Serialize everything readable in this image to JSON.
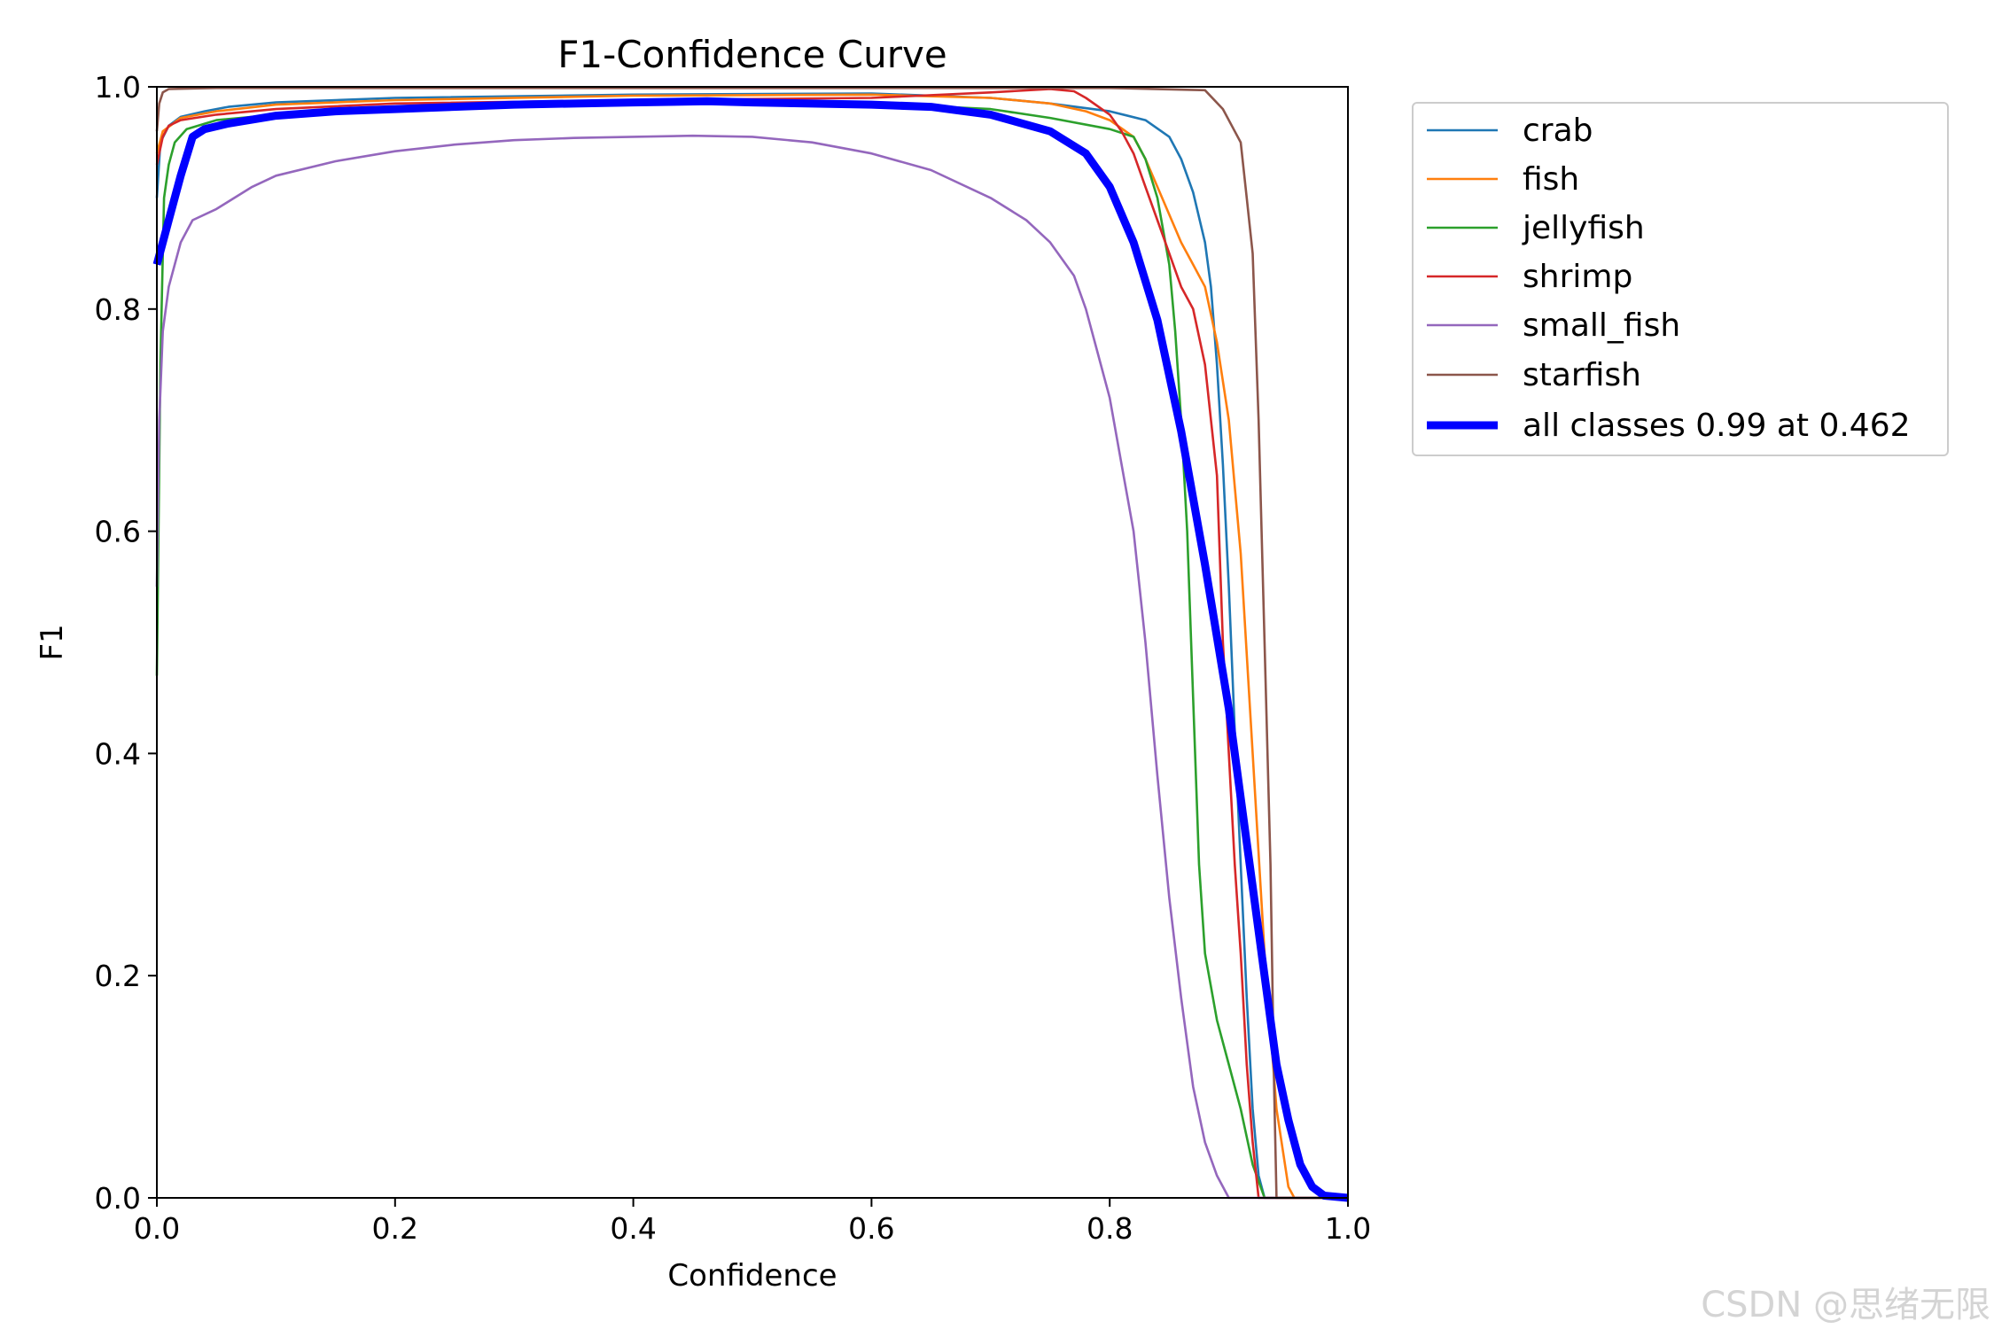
{
  "chart_data": {
    "type": "line",
    "title": "F1-Confidence Curve",
    "xlabel": "Confidence",
    "ylabel": "F1",
    "xlim": [
      0,
      1
    ],
    "ylim": [
      0,
      1
    ],
    "xticks": [
      "0.0",
      "0.2",
      "0.4",
      "0.6",
      "0.8",
      "1.0"
    ],
    "yticks": [
      "0.0",
      "0.2",
      "0.4",
      "0.6",
      "0.8",
      "1.0"
    ],
    "legend": "outside-right",
    "series": [
      {
        "name": "crab",
        "color": "#1f77b4",
        "points": [
          [
            0.0,
            0.9
          ],
          [
            0.003,
            0.95
          ],
          [
            0.01,
            0.965
          ],
          [
            0.02,
            0.973
          ],
          [
            0.04,
            0.978
          ],
          [
            0.06,
            0.982
          ],
          [
            0.1,
            0.986
          ],
          [
            0.2,
            0.99
          ],
          [
            0.4,
            0.993
          ],
          [
            0.6,
            0.994
          ],
          [
            0.7,
            0.99
          ],
          [
            0.75,
            0.985
          ],
          [
            0.8,
            0.978
          ],
          [
            0.83,
            0.97
          ],
          [
            0.85,
            0.955
          ],
          [
            0.86,
            0.935
          ],
          [
            0.87,
            0.905
          ],
          [
            0.88,
            0.86
          ],
          [
            0.885,
            0.82
          ],
          [
            0.89,
            0.75
          ],
          [
            0.895,
            0.66
          ],
          [
            0.9,
            0.55
          ],
          [
            0.905,
            0.42
          ],
          [
            0.91,
            0.3
          ],
          [
            0.915,
            0.18
          ],
          [
            0.92,
            0.08
          ],
          [
            0.925,
            0.02
          ],
          [
            0.93,
            0.0
          ],
          [
            1.0,
            0.0
          ]
        ]
      },
      {
        "name": "fish",
        "color": "#ff7f0e",
        "points": [
          [
            0.0,
            0.94
          ],
          [
            0.005,
            0.96
          ],
          [
            0.02,
            0.972
          ],
          [
            0.05,
            0.978
          ],
          [
            0.1,
            0.984
          ],
          [
            0.2,
            0.988
          ],
          [
            0.4,
            0.992
          ],
          [
            0.6,
            0.993
          ],
          [
            0.7,
            0.99
          ],
          [
            0.75,
            0.985
          ],
          [
            0.78,
            0.978
          ],
          [
            0.8,
            0.97
          ],
          [
            0.82,
            0.955
          ],
          [
            0.83,
            0.935
          ],
          [
            0.84,
            0.91
          ],
          [
            0.85,
            0.885
          ],
          [
            0.86,
            0.86
          ],
          [
            0.87,
            0.84
          ],
          [
            0.88,
            0.82
          ],
          [
            0.89,
            0.77
          ],
          [
            0.9,
            0.7
          ],
          [
            0.91,
            0.58
          ],
          [
            0.92,
            0.4
          ],
          [
            0.93,
            0.22
          ],
          [
            0.94,
            0.08
          ],
          [
            0.95,
            0.01
          ],
          [
            0.955,
            0.0
          ],
          [
            1.0,
            0.0
          ]
        ]
      },
      {
        "name": "jellyfish",
        "color": "#2ca02c",
        "points": [
          [
            0.0,
            0.47
          ],
          [
            0.003,
            0.75
          ],
          [
            0.006,
            0.9
          ],
          [
            0.01,
            0.93
          ],
          [
            0.015,
            0.95
          ],
          [
            0.025,
            0.962
          ],
          [
            0.05,
            0.97
          ],
          [
            0.1,
            0.975
          ],
          [
            0.2,
            0.98
          ],
          [
            0.4,
            0.985
          ],
          [
            0.6,
            0.985
          ],
          [
            0.7,
            0.98
          ],
          [
            0.75,
            0.972
          ],
          [
            0.8,
            0.962
          ],
          [
            0.82,
            0.955
          ],
          [
            0.83,
            0.935
          ],
          [
            0.84,
            0.9
          ],
          [
            0.85,
            0.84
          ],
          [
            0.855,
            0.78
          ],
          [
            0.86,
            0.7
          ],
          [
            0.865,
            0.6
          ],
          [
            0.87,
            0.45
          ],
          [
            0.875,
            0.3
          ],
          [
            0.88,
            0.22
          ],
          [
            0.89,
            0.16
          ],
          [
            0.9,
            0.12
          ],
          [
            0.91,
            0.08
          ],
          [
            0.92,
            0.03
          ],
          [
            0.93,
            0.0
          ],
          [
            1.0,
            0.0
          ]
        ]
      },
      {
        "name": "shrimp",
        "color": "#d62728",
        "points": [
          [
            0.0,
            0.93
          ],
          [
            0.005,
            0.955
          ],
          [
            0.01,
            0.965
          ],
          [
            0.02,
            0.97
          ],
          [
            0.05,
            0.975
          ],
          [
            0.1,
            0.98
          ],
          [
            0.2,
            0.985
          ],
          [
            0.4,
            0.988
          ],
          [
            0.6,
            0.99
          ],
          [
            0.7,
            0.995
          ],
          [
            0.75,
            0.998
          ],
          [
            0.77,
            0.996
          ],
          [
            0.78,
            0.99
          ],
          [
            0.8,
            0.975
          ],
          [
            0.81,
            0.96
          ],
          [
            0.82,
            0.94
          ],
          [
            0.83,
            0.91
          ],
          [
            0.84,
            0.88
          ],
          [
            0.85,
            0.85
          ],
          [
            0.86,
            0.82
          ],
          [
            0.87,
            0.8
          ],
          [
            0.88,
            0.75
          ],
          [
            0.89,
            0.65
          ],
          [
            0.895,
            0.5
          ],
          [
            0.9,
            0.4
          ],
          [
            0.905,
            0.3
          ],
          [
            0.91,
            0.22
          ],
          [
            0.915,
            0.12
          ],
          [
            0.92,
            0.05
          ],
          [
            0.925,
            0.0
          ],
          [
            1.0,
            0.0
          ]
        ]
      },
      {
        "name": "small_fish",
        "color": "#9467bd",
        "points": [
          [
            0.0,
            0.55
          ],
          [
            0.002,
            0.7
          ],
          [
            0.005,
            0.78
          ],
          [
            0.01,
            0.82
          ],
          [
            0.02,
            0.86
          ],
          [
            0.03,
            0.88
          ],
          [
            0.05,
            0.89
          ],
          [
            0.08,
            0.91
          ],
          [
            0.1,
            0.92
          ],
          [
            0.15,
            0.933
          ],
          [
            0.2,
            0.942
          ],
          [
            0.25,
            0.948
          ],
          [
            0.3,
            0.952
          ],
          [
            0.35,
            0.954
          ],
          [
            0.4,
            0.955
          ],
          [
            0.45,
            0.956
          ],
          [
            0.5,
            0.955
          ],
          [
            0.55,
            0.95
          ],
          [
            0.6,
            0.94
          ],
          [
            0.65,
            0.925
          ],
          [
            0.7,
            0.9
          ],
          [
            0.73,
            0.88
          ],
          [
            0.75,
            0.86
          ],
          [
            0.77,
            0.83
          ],
          [
            0.78,
            0.8
          ],
          [
            0.79,
            0.76
          ],
          [
            0.8,
            0.72
          ],
          [
            0.81,
            0.66
          ],
          [
            0.82,
            0.6
          ],
          [
            0.83,
            0.5
          ],
          [
            0.84,
            0.38
          ],
          [
            0.85,
            0.27
          ],
          [
            0.86,
            0.18
          ],
          [
            0.87,
            0.1
          ],
          [
            0.88,
            0.05
          ],
          [
            0.89,
            0.02
          ],
          [
            0.9,
            0.0
          ],
          [
            1.0,
            0.0
          ]
        ]
      },
      {
        "name": "starfish",
        "color": "#8c564b",
        "points": [
          [
            0.0,
            0.96
          ],
          [
            0.002,
            0.985
          ],
          [
            0.005,
            0.995
          ],
          [
            0.01,
            0.998
          ],
          [
            0.05,
            0.999
          ],
          [
            0.2,
            0.999
          ],
          [
            0.5,
            0.999
          ],
          [
            0.8,
            0.999
          ],
          [
            0.88,
            0.997
          ],
          [
            0.895,
            0.98
          ],
          [
            0.905,
            0.96
          ],
          [
            0.91,
            0.95
          ],
          [
            0.915,
            0.9
          ],
          [
            0.92,
            0.85
          ],
          [
            0.925,
            0.7
          ],
          [
            0.93,
            0.5
          ],
          [
            0.935,
            0.3
          ],
          [
            0.938,
            0.1
          ],
          [
            0.94,
            0.0
          ],
          [
            1.0,
            0.0
          ]
        ]
      },
      {
        "name": "all classes 0.99 at 0.462",
        "color": "#0000ff",
        "bold": true,
        "points": [
          [
            0.0,
            0.84
          ],
          [
            0.01,
            0.88
          ],
          [
            0.02,
            0.92
          ],
          [
            0.03,
            0.955
          ],
          [
            0.04,
            0.962
          ],
          [
            0.06,
            0.967
          ],
          [
            0.1,
            0.974
          ],
          [
            0.15,
            0.978
          ],
          [
            0.2,
            0.98
          ],
          [
            0.3,
            0.984
          ],
          [
            0.4,
            0.986
          ],
          [
            0.462,
            0.987
          ],
          [
            0.5,
            0.986
          ],
          [
            0.6,
            0.984
          ],
          [
            0.65,
            0.982
          ],
          [
            0.7,
            0.975
          ],
          [
            0.75,
            0.96
          ],
          [
            0.78,
            0.94
          ],
          [
            0.8,
            0.91
          ],
          [
            0.82,
            0.86
          ],
          [
            0.84,
            0.79
          ],
          [
            0.86,
            0.69
          ],
          [
            0.88,
            0.57
          ],
          [
            0.9,
            0.44
          ],
          [
            0.91,
            0.36
          ],
          [
            0.92,
            0.28
          ],
          [
            0.93,
            0.2
          ],
          [
            0.94,
            0.12
          ],
          [
            0.95,
            0.07
          ],
          [
            0.96,
            0.03
          ],
          [
            0.97,
            0.01
          ],
          [
            0.98,
            0.002
          ],
          [
            1.0,
            0.0
          ]
        ]
      }
    ]
  },
  "watermark": "CSDN @思绪无限"
}
